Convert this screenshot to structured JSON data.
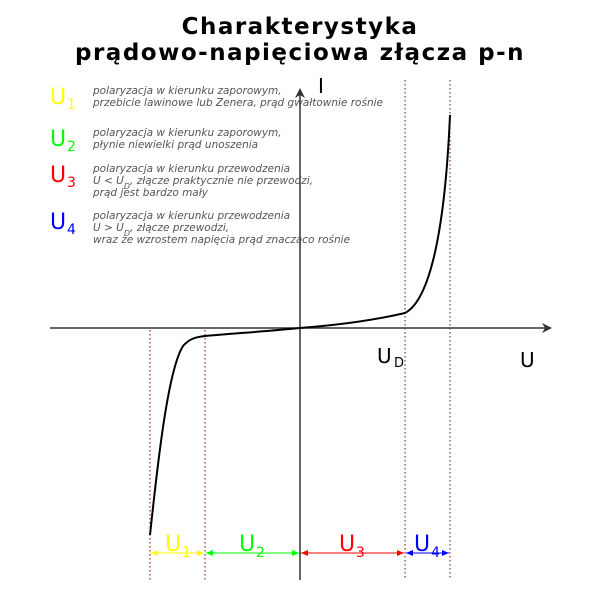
{
  "title": {
    "line1": "Charakterystyka",
    "line2": "prądowo-napięciowa złącza p-n"
  },
  "colors": {
    "u1": "#ffff00",
    "u2": "#00ff00",
    "u3": "#ff0000",
    "u4": "#0000ff",
    "guides": "#800000",
    "text_desc": "#555555",
    "axis": "#333333"
  },
  "legend": [
    {
      "symbol": "U",
      "sub": "1",
      "color": "#ffff00",
      "lines": [
        "polaryzacja w kierunku zaporowym,",
        "przebicie lawinowe lub Zenera, prąd gwałtownie rośnie"
      ]
    },
    {
      "symbol": "U",
      "sub": "2",
      "color": "#00ff00",
      "lines": [
        "polaryzacja w kierunku zaporowym,",
        "płynie niewielki prąd unoszenia"
      ]
    },
    {
      "symbol": "U",
      "sub": "3",
      "color": "#ff0000",
      "lines": [
        "polaryzacja w kierunku przewodzenia",
        "U < U_D, złącze praktycznie nie przewodzi,",
        "prąd jest bardzo mały"
      ]
    },
    {
      "symbol": "U",
      "sub": "4",
      "color": "#0000ff",
      "lines": [
        "polaryzacja w kierunku przewodzenia",
        "U > U_D, złącze przewodzi,",
        "wraz ze wzrostem napięcia prąd znacząco rośnie"
      ]
    }
  ],
  "axes": {
    "y_label": "I",
    "x_label": "U",
    "ud_label": "U",
    "ud_sub": "D"
  },
  "regions": [
    {
      "symbol": "U",
      "sub": "1",
      "color": "#ffff00"
    },
    {
      "symbol": "U",
      "sub": "2",
      "color": "#00ff00"
    },
    {
      "symbol": "U",
      "sub": "3",
      "color": "#ff0000"
    },
    {
      "symbol": "U",
      "sub": "4",
      "color": "#0000ff"
    }
  ]
}
